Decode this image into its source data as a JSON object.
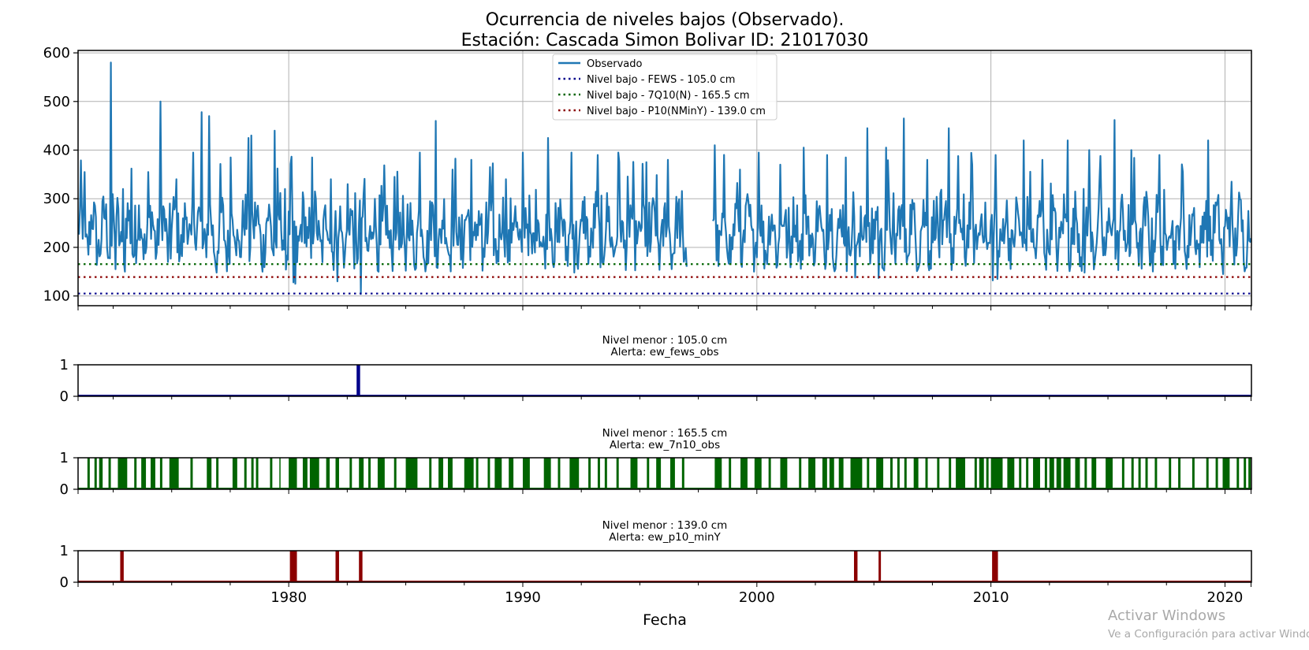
{
  "chart_data": [
    {
      "type": "line",
      "title": "Ocurrencia de niveles bajos (Observado).",
      "subtitle": "Estación: Cascada Simon Bolivar ID: 21017030",
      "xlabel": "",
      "ylabel": "",
      "xlim": [
        1971.0,
        2021.13
      ],
      "ylim": [
        80,
        605
      ],
      "yticks": [
        100,
        200,
        300,
        400,
        500,
        600
      ],
      "grid": true,
      "legend": "top-center",
      "series": [
        {
          "name": "Observado",
          "color": "#1f77b4",
          "gap": [
            1997.0,
            1998.1
          ],
          "baseline": 230,
          "peaks": [
            {
              "x": 1971.3,
              "y": 355
            },
            {
              "x": 1972.4,
              "y": 580
            },
            {
              "x": 1972.9,
              "y": 320
            },
            {
              "x": 1973.3,
              "y": 362
            },
            {
              "x": 1974.0,
              "y": 355
            },
            {
              "x": 1974.5,
              "y": 500
            },
            {
              "x": 1975.2,
              "y": 340
            },
            {
              "x": 1975.9,
              "y": 395
            },
            {
              "x": 1976.3,
              "y": 478
            },
            {
              "x": 1976.6,
              "y": 470
            },
            {
              "x": 1977.5,
              "y": 385
            },
            {
              "x": 1978.3,
              "y": 425
            },
            {
              "x": 1978.4,
              "y": 430
            },
            {
              "x": 1979.4,
              "y": 440
            },
            {
              "x": 1980.3,
              "y": 385
            },
            {
              "x": 1981.0,
              "y": 385
            },
            {
              "x": 1981.8,
              "y": 340
            },
            {
              "x": 1982.5,
              "y": 330
            },
            {
              "x": 1983.2,
              "y": 310
            },
            {
              "x": 1984.5,
              "y": 345
            },
            {
              "x": 1985.6,
              "y": 395
            },
            {
              "x": 1986.3,
              "y": 460
            },
            {
              "x": 1987.0,
              "y": 360
            },
            {
              "x": 1987.8,
              "y": 380
            },
            {
              "x": 1988.6,
              "y": 365
            },
            {
              "x": 1989.3,
              "y": 340
            },
            {
              "x": 1990.0,
              "y": 395
            },
            {
              "x": 1991.1,
              "y": 425
            },
            {
              "x": 1992.1,
              "y": 395
            },
            {
              "x": 1993.2,
              "y": 390
            },
            {
              "x": 1994.1,
              "y": 395
            },
            {
              "x": 1995.3,
              "y": 375
            },
            {
              "x": 1996.2,
              "y": 380
            },
            {
              "x": 1998.2,
              "y": 410
            },
            {
              "x": 1999.3,
              "y": 360
            },
            {
              "x": 2000.1,
              "y": 395
            },
            {
              "x": 2001.0,
              "y": 370
            },
            {
              "x": 2002.0,
              "y": 405
            },
            {
              "x": 2003.0,
              "y": 390
            },
            {
              "x": 2003.8,
              "y": 385
            },
            {
              "x": 2004.7,
              "y": 445
            },
            {
              "x": 2005.5,
              "y": 405
            },
            {
              "x": 2006.3,
              "y": 465
            },
            {
              "x": 2007.3,
              "y": 380
            },
            {
              "x": 2008.2,
              "y": 445
            },
            {
              "x": 2009.2,
              "y": 370
            },
            {
              "x": 2010.2,
              "y": 390
            },
            {
              "x": 2011.4,
              "y": 420
            },
            {
              "x": 2012.2,
              "y": 380
            },
            {
              "x": 2013.3,
              "y": 420
            },
            {
              "x": 2014.2,
              "y": 400
            },
            {
              "x": 2015.3,
              "y": 462
            },
            {
              "x": 2016.0,
              "y": 400
            },
            {
              "x": 2017.2,
              "y": 390
            },
            {
              "x": 2018.2,
              "y": 355
            },
            {
              "x": 2019.3,
              "y": 420
            },
            {
              "x": 2020.3,
              "y": 335
            },
            {
              "x": 2021.0,
              "y": 275
            }
          ],
          "troughs": [
            {
              "x": 1972.6,
              "y": 155
            },
            {
              "x": 1973.0,
              "y": 150
            },
            {
              "x": 1976.9,
              "y": 148
            },
            {
              "x": 1980.2,
              "y": 128
            },
            {
              "x": 1980.3,
              "y": 125
            },
            {
              "x": 1982.1,
              "y": 130
            },
            {
              "x": 1983.1,
              "y": 104
            },
            {
              "x": 1985.0,
              "y": 152
            },
            {
              "x": 1988.3,
              "y": 152
            },
            {
              "x": 1992.2,
              "y": 148
            },
            {
              "x": 1997.0,
              "y": 160
            },
            {
              "x": 2003.3,
              "y": 160
            },
            {
              "x": 2004.2,
              "y": 138
            },
            {
              "x": 2005.2,
              "y": 137
            },
            {
              "x": 2010.1,
              "y": 132
            },
            {
              "x": 2010.3,
              "y": 135
            },
            {
              "x": 2014.0,
              "y": 148
            },
            {
              "x": 2019.9,
              "y": 145
            }
          ]
        },
        {
          "name": "Nivel bajo - FEWS - 105.0 cm",
          "value": 105.0,
          "color": "#00008b",
          "style": "dotted"
        },
        {
          "name": "Nivel bajo - 7Q10(N) - 165.5 cm",
          "value": 165.5,
          "color": "#006400",
          "style": "dotted"
        },
        {
          "name": "Nivel bajo - P10(NMinY) - 139.0 cm",
          "value": 139.0,
          "color": "#8b0000",
          "style": "dotted"
        }
      ]
    },
    {
      "type": "bar",
      "title": "Nivel menor : 105.0 cm",
      "subtitle": "Alerta: ew_fews_obs",
      "color": "#00008b",
      "ylim": [
        0,
        1
      ],
      "yticks": [
        0,
        1
      ],
      "xlim": [
        1971.0,
        2021.13
      ],
      "events": [
        [
          1982.9,
          1983.05
        ]
      ]
    },
    {
      "type": "bar",
      "title": "Nivel menor : 165.5 cm",
      "subtitle": "Alerta: ew_7n10_obs",
      "color": "#006400",
      "ylim": [
        0,
        1
      ],
      "yticks": [
        0,
        1
      ],
      "xlim": [
        1971.0,
        2021.13
      ],
      "events": [
        [
          1971.4,
          1971.5
        ],
        [
          1971.7,
          1971.8
        ],
        [
          1971.9,
          1972.05
        ],
        [
          1972.3,
          1972.4
        ],
        [
          1972.7,
          1973.1
        ],
        [
          1973.4,
          1973.5
        ],
        [
          1973.7,
          1973.9
        ],
        [
          1974.1,
          1974.3
        ],
        [
          1974.5,
          1974.6
        ],
        [
          1974.9,
          1975.3
        ],
        [
          1975.8,
          1975.9
        ],
        [
          1976.5,
          1976.7
        ],
        [
          1976.9,
          1977.0
        ],
        [
          1977.6,
          1977.8
        ],
        [
          1978.1,
          1978.2
        ],
        [
          1978.4,
          1978.5
        ],
        [
          1978.6,
          1978.7
        ],
        [
          1979.2,
          1979.3
        ],
        [
          1979.6,
          1979.65
        ],
        [
          1980.0,
          1980.35
        ],
        [
          1980.6,
          1980.8
        ],
        [
          1980.9,
          1981.3
        ],
        [
          1981.6,
          1981.75
        ],
        [
          1982.0,
          1982.15
        ],
        [
          1982.6,
          1982.7
        ],
        [
          1983.0,
          1983.2
        ],
        [
          1983.4,
          1983.5
        ],
        [
          1983.8,
          1984.1
        ],
        [
          1984.5,
          1984.6
        ],
        [
          1985.0,
          1985.5
        ],
        [
          1986.0,
          1986.1
        ],
        [
          1986.4,
          1986.6
        ],
        [
          1986.8,
          1987.0
        ],
        [
          1987.5,
          1987.9
        ],
        [
          1988.0,
          1988.1
        ],
        [
          1988.5,
          1988.6
        ],
        [
          1988.8,
          1989.1
        ],
        [
          1989.4,
          1989.6
        ],
        [
          1990.0,
          1990.3
        ],
        [
          1990.9,
          1991.2
        ],
        [
          1991.5,
          1991.6
        ],
        [
          1992.0,
          1992.4
        ],
        [
          1992.8,
          1992.9
        ],
        [
          1993.2,
          1993.3
        ],
        [
          1993.5,
          1993.6
        ],
        [
          1994.0,
          1994.1
        ],
        [
          1994.6,
          1994.9
        ],
        [
          1995.3,
          1995.4
        ],
        [
          1995.7,
          1995.9
        ],
        [
          1996.3,
          1996.5
        ],
        [
          1996.8,
          1996.9
        ],
        [
          1998.2,
          1998.5
        ],
        [
          1998.8,
          1998.9
        ],
        [
          1999.3,
          1999.6
        ],
        [
          1999.9,
          2000.2
        ],
        [
          2000.5,
          2000.6
        ],
        [
          2001.0,
          2001.3
        ],
        [
          2001.8,
          2001.9
        ],
        [
          2002.2,
          2002.5
        ],
        [
          2002.8,
          2003.0
        ],
        [
          2003.1,
          2003.3
        ],
        [
          2003.5,
          2003.7
        ],
        [
          2004.0,
          2004.5
        ],
        [
          2004.7,
          2004.8
        ],
        [
          2005.1,
          2005.4
        ],
        [
          2005.7,
          2005.8
        ],
        [
          2006.0,
          2006.1
        ],
        [
          2006.3,
          2006.4
        ],
        [
          2006.7,
          2006.9
        ],
        [
          2007.2,
          2007.3
        ],
        [
          2007.7,
          2007.8
        ],
        [
          2008.2,
          2008.3
        ],
        [
          2008.5,
          2008.9
        ],
        [
          2009.3,
          2009.4
        ],
        [
          2009.5,
          2009.7
        ],
        [
          2009.8,
          2009.9
        ],
        [
          2010.0,
          2010.5
        ],
        [
          2010.7,
          2011.0
        ],
        [
          2011.2,
          2011.3
        ],
        [
          2011.5,
          2011.6
        ],
        [
          2011.8,
          2012.1
        ],
        [
          2012.3,
          2012.4
        ],
        [
          2012.5,
          2012.7
        ],
        [
          2012.8,
          2013.0
        ],
        [
          2013.1,
          2013.4
        ],
        [
          2013.6,
          2013.8
        ],
        [
          2014.0,
          2014.1
        ],
        [
          2014.3,
          2014.5
        ],
        [
          2014.9,
          2015.2
        ],
        [
          2015.6,
          2015.7
        ],
        [
          2016.0,
          2016.1
        ],
        [
          2016.3,
          2016.4
        ],
        [
          2016.6,
          2016.7
        ],
        [
          2017.0,
          2017.1
        ],
        [
          2017.6,
          2017.7
        ],
        [
          2018.0,
          2018.1
        ],
        [
          2018.6,
          2018.7
        ],
        [
          2019.2,
          2019.3
        ],
        [
          2019.6,
          2019.7
        ],
        [
          2019.9,
          2020.2
        ],
        [
          2020.5,
          2020.6
        ],
        [
          2020.8,
          2020.9
        ],
        [
          2021.0,
          2021.1
        ]
      ]
    },
    {
      "type": "bar",
      "title": "Nivel menor : 139.0 cm",
      "subtitle": "Alerta: ew_p10_minY",
      "color": "#8b0000",
      "ylim": [
        0,
        1
      ],
      "yticks": [
        0,
        1
      ],
      "xlim": [
        1971.0,
        2021.13
      ],
      "events": [
        [
          1972.8,
          1972.95
        ],
        [
          1980.05,
          1980.35
        ],
        [
          1982.0,
          1982.15
        ],
        [
          1983.0,
          1983.15
        ],
        [
          2004.15,
          2004.3
        ],
        [
          2005.2,
          2005.3
        ],
        [
          2010.05,
          2010.3
        ]
      ]
    }
  ],
  "shared_x_axis": {
    "label": "Fecha",
    "ticks": [
      1980,
      1990,
      2000,
      2010,
      2020
    ]
  },
  "watermark": {
    "line1": "Activar Windows",
    "line2": "Ve a Configuración para activar Windows."
  }
}
